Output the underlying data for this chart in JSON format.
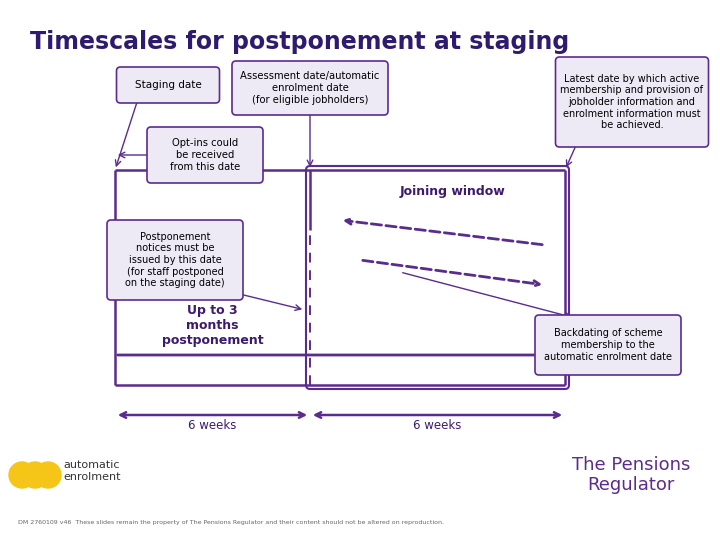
{
  "title": "Timescales for postponement at staging",
  "title_color": "#2E1A6E",
  "title_fontsize": 17,
  "bg_color": "#FFFFFF",
  "purple": "#5B2C8D",
  "dark_purple": "#3D1A6E",
  "callout_bg": "#EEEAF5",
  "callout_border": "#5B2C8D",
  "box1_text": "Staging date",
  "box2_text": "Assessment date/automatic\nenrolment date\n(for eligible jobholders)",
  "box3_text": "Latest date by which active\nmembership and provision of\njobholder information and\nenrolment information must\nbe achieved.",
  "box4_text": "Opt-ins could\nbe received\nfrom this date",
  "box5_text": "Postponement\nnotices must be\nissued by this date\n(for staff postponed\non the staging date)",
  "box6_text": "Backdating of scheme\nmembership to the\nautomatic enrolment date",
  "joining_window_text": "Joining window",
  "arrow_text": "Up to 3\nmonths\npostponement",
  "weeks1_text": "6 weeks",
  "weeks2_text": "6 weeks",
  "footer_text": "DM 2760109 v46  These slides remain the property of The Pensions Regulator and their content should not be altered on reproduction.",
  "pensions_text": "The Pensions\nRegulator",
  "automatic_text": "automatic\nenrolment"
}
